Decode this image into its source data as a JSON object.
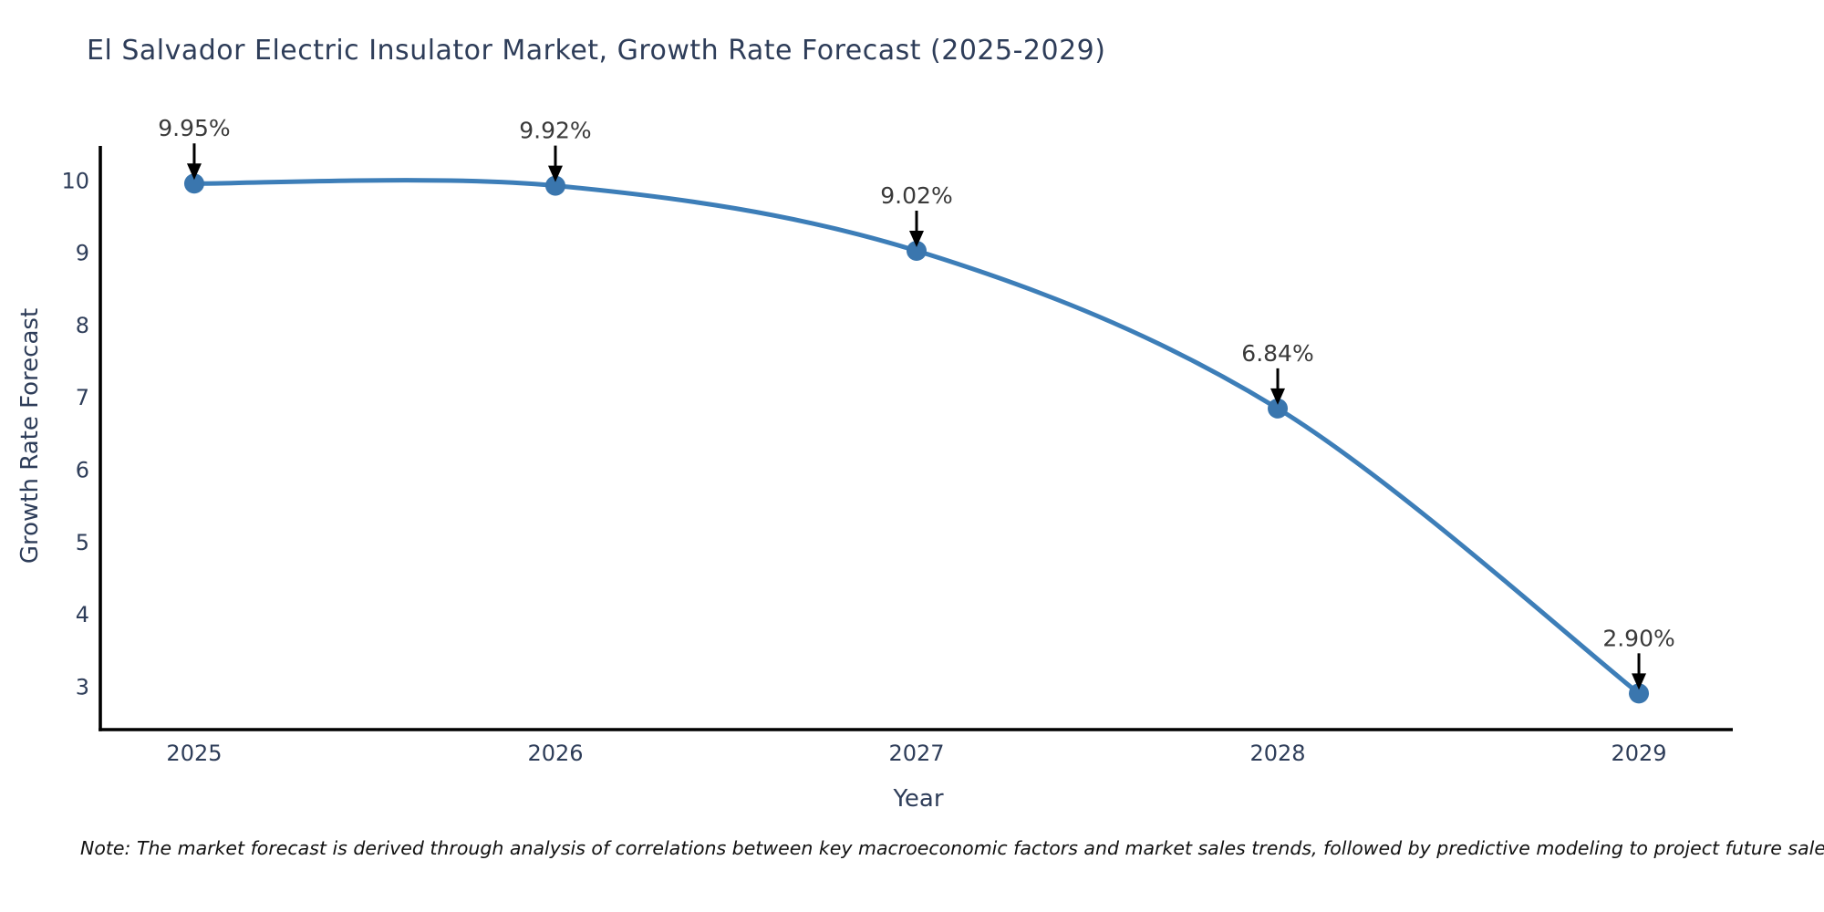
{
  "title": "El Salvador Electric Insulator Market, Growth Rate Forecast (2025-2029)",
  "footnote": "Note: The market forecast is derived through analysis of correlations between key macroeconomic factors and market sales trends, followed by predictive modeling to project future sales",
  "chart_data": {
    "type": "line",
    "title": "El Salvador Electric Insulator Market, Growth Rate Forecast (2025-2029)",
    "xlabel": "Year",
    "ylabel": "Growth Rate Forecast",
    "x": [
      2025,
      2026,
      2027,
      2028,
      2029
    ],
    "values": [
      9.95,
      9.92,
      9.02,
      6.84,
      2.9
    ],
    "point_labels": [
      "9.95%",
      "9.92%",
      "9.02%",
      "6.84%",
      "2.90%"
    ],
    "xticks": [
      "2025",
      "2026",
      "2027",
      "2028",
      "2029"
    ],
    "yticks": [
      3,
      4,
      5,
      6,
      7,
      8,
      9,
      10
    ],
    "xlim": [
      2024.74,
      2029.26
    ],
    "ylim": [
      2.4,
      10.47
    ],
    "grid": false,
    "legend": null,
    "line_shape": "spline",
    "colors": {
      "line": "#3d7eb8",
      "marker": "#3a76ae",
      "axis": "#000000",
      "arrow": "#000000",
      "tick_text": "#2e3d59",
      "annotation_text": "#3a3a3a"
    }
  }
}
